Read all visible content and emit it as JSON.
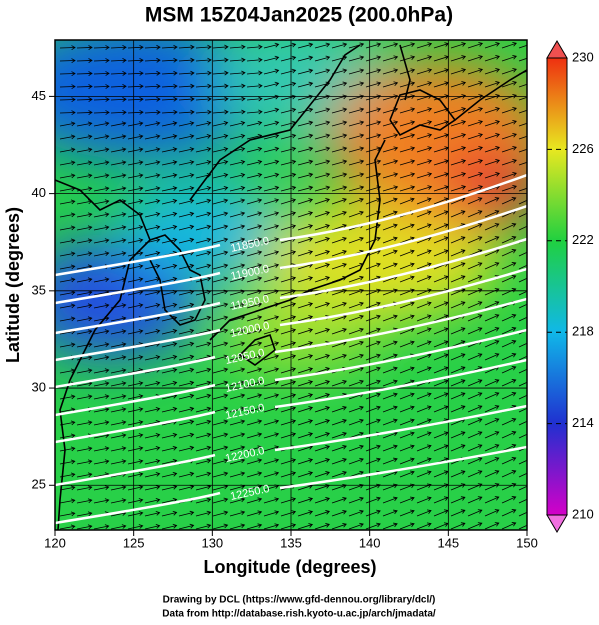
{
  "chart_data": {
    "type": "map",
    "title": "MSM 15Z04Jan2025 (200.0hPa)",
    "x_label": "Longitude (degrees)",
    "y_label": "Latitude  (degrees)",
    "xlim": [
      120,
      150
    ],
    "xticks": [
      120,
      125,
      130,
      135,
      140,
      145,
      150
    ],
    "ylim": [
      22.7,
      47.9
    ],
    "yticks": [
      25,
      30,
      35,
      40,
      45
    ],
    "grid": true,
    "colorbar": {
      "lim": [
        210,
        230
      ],
      "ticks": [
        210,
        214,
        218,
        222,
        226,
        230
      ]
    },
    "contour_labels": [
      "11850.0",
      "11900.0",
      "11950.0",
      "12000.0",
      "12050.0",
      "12100.0",
      "12150.0",
      "12200.0",
      "12250.0"
    ],
    "credits": [
      "Drawing by DCL (https://www.gfd-dennou.org/library/dcl/)",
      "Data from http://database.rish.kyoto-u.ac.jp/arch/jmadata/"
    ]
  }
}
